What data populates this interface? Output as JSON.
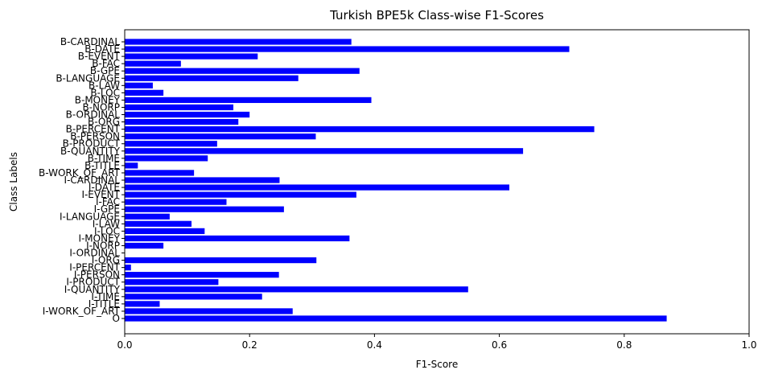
{
  "chart_data": {
    "type": "bar",
    "orientation": "horizontal",
    "title": "Turkish BPE5k Class-wise F1-Scores",
    "xlabel": "F1-Score",
    "ylabel": "Class Labels",
    "xlim": [
      0,
      1.0
    ],
    "xticks": [
      "0.0",
      "0.2",
      "0.4",
      "0.6",
      "0.8",
      "1.0"
    ],
    "grid": false,
    "bar_color": "#0000ff",
    "categories": [
      "B-CARDINAL",
      "B-DATE",
      "B-EVENT",
      "B-FAC",
      "B-GPE",
      "B-LANGUAGE",
      "B-LAW",
      "B-LOC",
      "B-MONEY",
      "B-NORP",
      "B-ORDINAL",
      "B-ORG",
      "B-PERCENT",
      "B-PERSON",
      "B-PRODUCT",
      "B-QUANTITY",
      "B-TIME",
      "B-TITLE",
      "B-WORK_OF_ART",
      "I-CARDINAL",
      "I-DATE",
      "I-EVENT",
      "I-FAC",
      "I-GPE",
      "I-LANGUAGE",
      "I-LAW",
      "I-LOC",
      "I-MONEY",
      "I-NORP",
      "I-ORDINAL",
      "I-ORG",
      "I-PERCENT",
      "I-PERSON",
      "I-PRODUCT",
      "I-QUANTITY",
      "I-TIME",
      "I-TITLE",
      "I-WORK_OF_ART",
      "O"
    ],
    "values": [
      0.363,
      0.712,
      0.213,
      0.09,
      0.376,
      0.278,
      0.045,
      0.062,
      0.395,
      0.174,
      0.2,
      0.182,
      0.752,
      0.306,
      0.148,
      0.638,
      0.133,
      0.021,
      0.111,
      0.248,
      0.616,
      0.371,
      0.163,
      0.255,
      0.072,
      0.107,
      0.128,
      0.36,
      0.062,
      0.0,
      0.307,
      0.01,
      0.247,
      0.15,
      0.55,
      0.22,
      0.056,
      0.269,
      0.868
    ]
  }
}
